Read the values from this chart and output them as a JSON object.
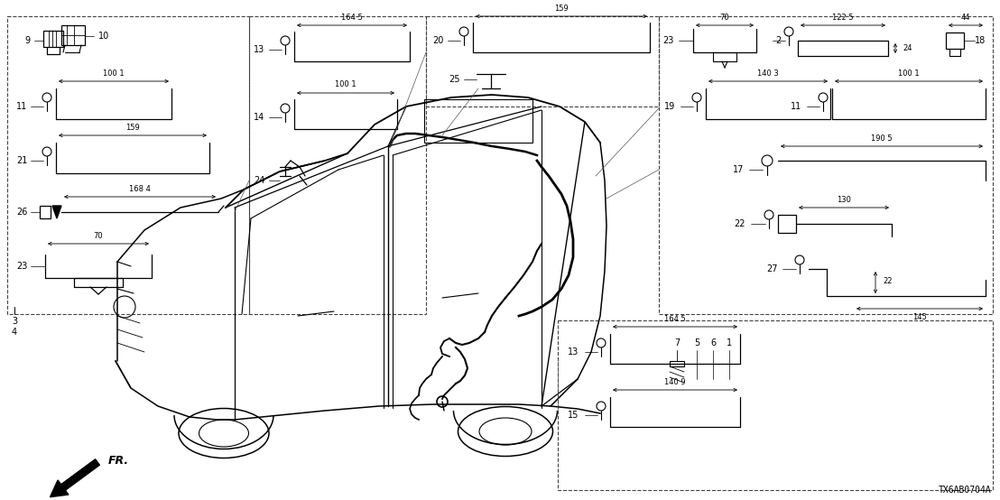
{
  "diagram_code": "TX6AB0704A",
  "bg_color": "#ffffff",
  "line_color": "#000000",
  "fig_width": 11.08,
  "fig_height": 5.54,
  "dpi": 100
}
